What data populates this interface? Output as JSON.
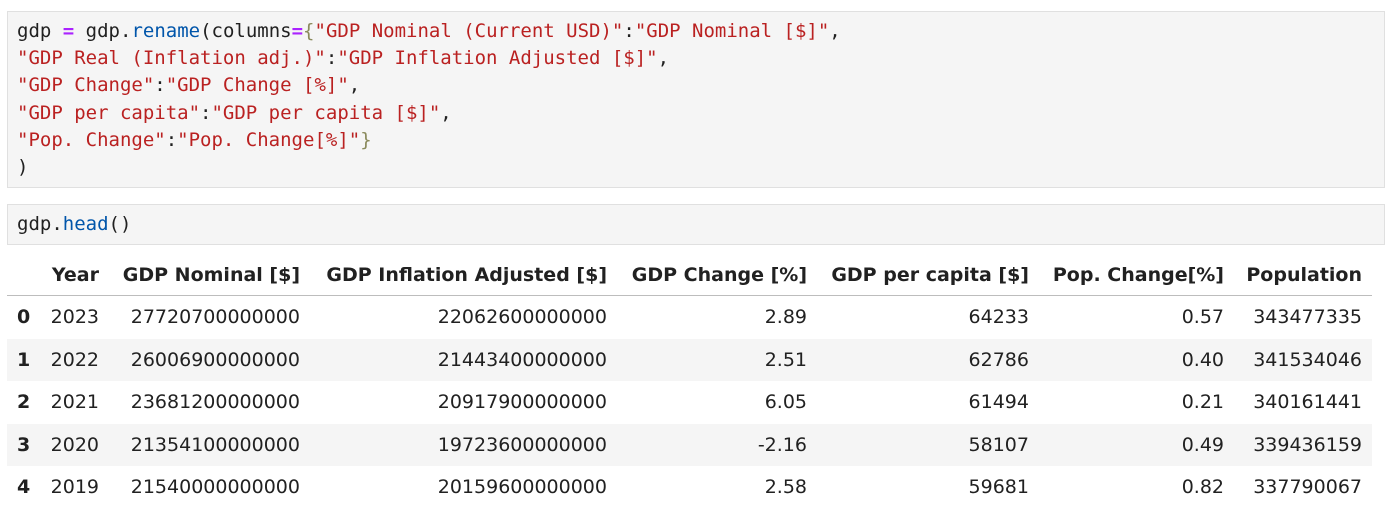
{
  "cells": [
    {
      "code": [
        "gdp = gdp.rename(columns={\"GDP Nominal (Current USD)\":\"GDP Nominal [$]\",",
        "\"GDP Real (Inflation adj.)\":\"GDP Inflation Adjusted [$]\",",
        "\"GDP Change\":\"GDP Change [%]\",",
        "\"GDP per capita\":\"GDP per capita [$]\",",
        "\"Pop. Change\":\"Pop. Change[%]\"}",
        ")"
      ]
    },
    {
      "code": [
        "gdp.head()"
      ]
    }
  ],
  "table": {
    "columns": [
      "Year",
      "GDP Nominal [$]",
      "GDP Inflation Adjusted [$]",
      "GDP Change [%]",
      "GDP per capita [$]",
      "Pop. Change[%]",
      "Population"
    ],
    "rows": [
      [
        "0",
        "2023",
        "27720700000000",
        "22062600000000",
        "2.89",
        "64233",
        "0.57",
        "343477335"
      ],
      [
        "1",
        "2022",
        "26006900000000",
        "21443400000000",
        "2.51",
        "62786",
        "0.40",
        "341534046"
      ],
      [
        "2",
        "2021",
        "23681200000000",
        "20917900000000",
        "6.05",
        "61494",
        "0.21",
        "340161441"
      ],
      [
        "3",
        "2020",
        "21354100000000",
        "19723600000000",
        "-2.16",
        "58107",
        "0.49",
        "339436159"
      ],
      [
        "4",
        "2019",
        "21540000000000",
        "20159600000000",
        "2.58",
        "59681",
        "0.82",
        "337790067"
      ]
    ]
  }
}
